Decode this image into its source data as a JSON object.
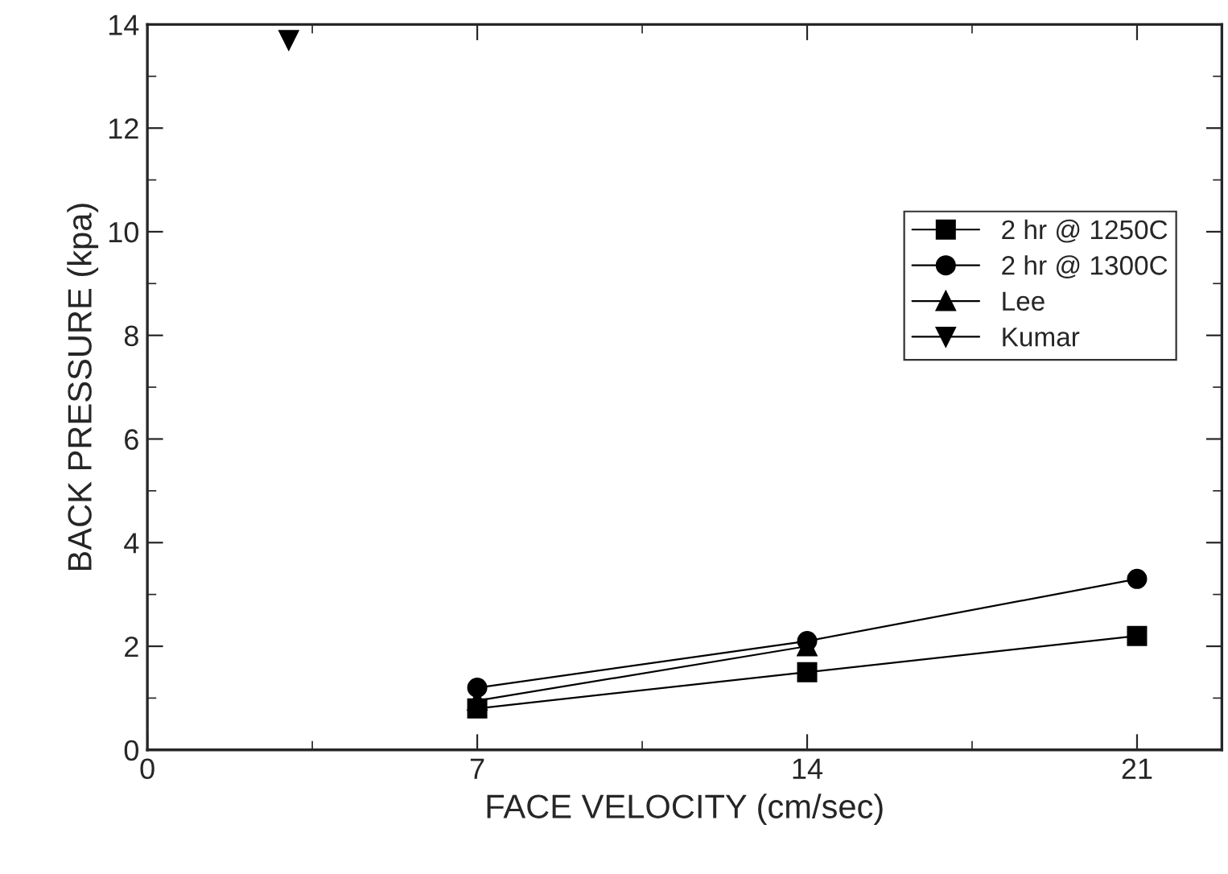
{
  "chart_data": {
    "type": "line",
    "xlabel": "FACE VELOCITY (cm/sec)",
    "ylabel": "BACK PRESSURE (kpa)",
    "xlim": [
      0,
      22.8
    ],
    "xticks": [
      0,
      7,
      14,
      21
    ],
    "ylim": [
      0,
      14
    ],
    "yticks": [
      0,
      2,
      4,
      6,
      8,
      10,
      12,
      14
    ],
    "grid": false,
    "legend": "right",
    "series": [
      {
        "name": "2 hr @ 1250C",
        "color": "#000000",
        "marker": "square",
        "x": [
          7,
          14,
          21
        ],
        "values": [
          0.8,
          1.5,
          2.2
        ]
      },
      {
        "name": "2 hr @ 1300C",
        "color": "#000000",
        "marker": "circle",
        "x": [
          7,
          14,
          21
        ],
        "values": [
          1.2,
          2.1,
          3.3
        ]
      },
      {
        "name": "Lee",
        "color": "#000000",
        "marker": "triangle",
        "x": [
          7,
          14
        ],
        "values": [
          0.95,
          2.0
        ]
      },
      {
        "name": "Kumar",
        "color": "#000000",
        "marker": "triangle_down",
        "x": [
          3
        ],
        "values": [
          13.7
        ]
      }
    ]
  }
}
